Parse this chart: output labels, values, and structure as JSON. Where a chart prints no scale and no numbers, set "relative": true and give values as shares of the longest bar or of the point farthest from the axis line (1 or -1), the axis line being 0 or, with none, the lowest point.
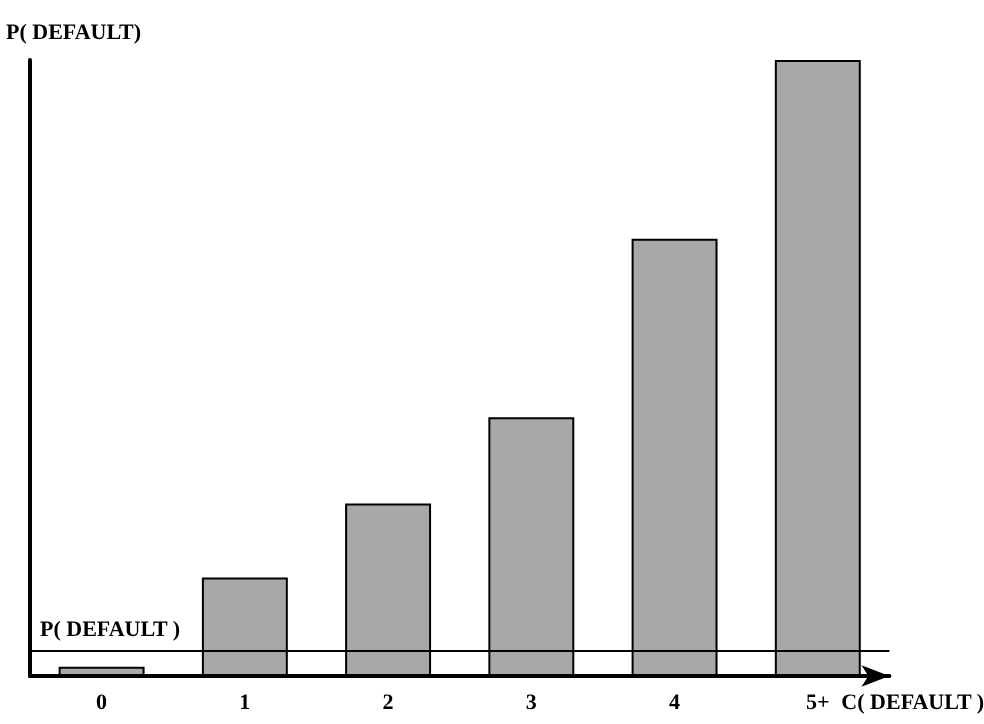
{
  "chart_data": {
    "type": "bar",
    "relative": true,
    "ylabel": "P( DEFAULT)",
    "xlabel": "C( DEFAULT )",
    "categories": [
      "0",
      "1",
      "2",
      "3",
      "4",
      "5+"
    ],
    "values": [
      0.015,
      0.16,
      0.28,
      0.42,
      0.71,
      1
    ],
    "color": "#a8a8a8",
    "ref_lines": [
      {
        "axis": "y",
        "value": 0.04,
        "label": "P( DEFAULT )"
      }
    ],
    "grid": false
  }
}
